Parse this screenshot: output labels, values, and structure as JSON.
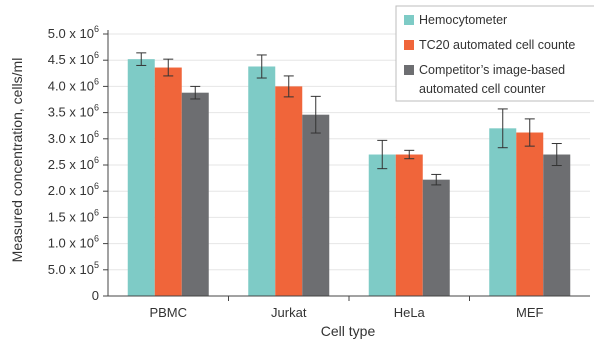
{
  "chart_data": {
    "type": "bar",
    "xlabel": "Cell type",
    "ylabel": "Measured concentration, cells/ml",
    "ylim": [
      0,
      5000000
    ],
    "categories": [
      "PBMC",
      "Jurkat",
      "HeLa",
      "MEF"
    ],
    "y_tick_values": [
      0,
      500000,
      1000000,
      1500000,
      2000000,
      2500000,
      3000000,
      3500000,
      4000000,
      4500000,
      5000000
    ],
    "y_ticks": [
      {
        "label": "0",
        "mantissa": "",
        "exponent": ""
      },
      {
        "label": "",
        "mantissa": "5.0 x 10",
        "exponent": "5"
      },
      {
        "label": "",
        "mantissa": "1.0 x 10",
        "exponent": "6"
      },
      {
        "label": "",
        "mantissa": "1.5 x 10",
        "exponent": "6"
      },
      {
        "label": "",
        "mantissa": "2.0 x 10",
        "exponent": "6"
      },
      {
        "label": "",
        "mantissa": "2.5 x 10",
        "exponent": "6"
      },
      {
        "label": "",
        "mantissa": "3.0 x 10",
        "exponent": "6"
      },
      {
        "label": "",
        "mantissa": "3.5 x 10",
        "exponent": "6"
      },
      {
        "label": "",
        "mantissa": "4.0 x 10",
        "exponent": "6"
      },
      {
        "label": "",
        "mantissa": "4.5 x 10",
        "exponent": "6"
      },
      {
        "label": "",
        "mantissa": "5.0 x 10",
        "exponent": "6"
      }
    ],
    "grid": "horizontal",
    "legend_position": "top-right",
    "series": [
      {
        "name": "Hemocytometer",
        "color": "#7ecbc6",
        "values": [
          4520000,
          4380000,
          2700000,
          3200000
        ],
        "errors": [
          120000,
          220000,
          270000,
          370000
        ]
      },
      {
        "name": "TC20 automated cell counte",
        "color": "#f0653a",
        "values": [
          4360000,
          4000000,
          2700000,
          3120000
        ],
        "errors": [
          160000,
          200000,
          80000,
          260000
        ]
      },
      {
        "name": "Competitor’s image-based",
        "name_line2": "automated cell counter",
        "color": "#6d6e71",
        "values": [
          3880000,
          3460000,
          2220000,
          2700000
        ],
        "errors": [
          120000,
          350000,
          100000,
          210000
        ]
      }
    ]
  }
}
